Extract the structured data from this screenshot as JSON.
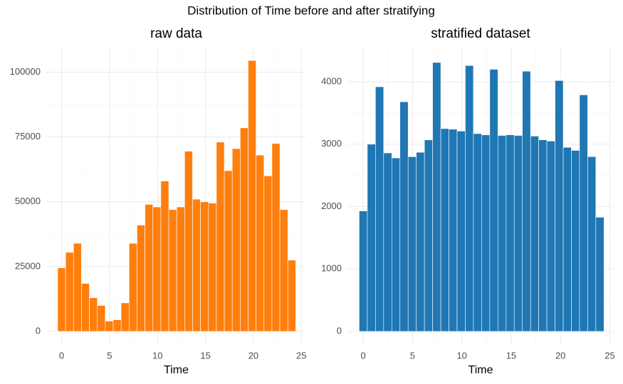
{
  "title": "Distribution of Time before and after stratifying",
  "chart_data": [
    {
      "type": "histogram",
      "title": "raw data",
      "x_label": "Time",
      "color": "#ff7f0e",
      "bins": [
        -0.414,
        0.414,
        1.241,
        2.069,
        2.897,
        3.724,
        4.552,
        5.379,
        6.207,
        7.034,
        7.862,
        8.69,
        9.517,
        10.345,
        11.172,
        12.0,
        12.828,
        13.655,
        14.483,
        15.31,
        16.138,
        16.966,
        17.793,
        18.621,
        19.448,
        20.276,
        21.103,
        21.931,
        22.759,
        23.586,
        24.414
      ],
      "values": [
        24500,
        30500,
        34000,
        18500,
        13000,
        10000,
        4000,
        4500,
        11000,
        34000,
        41000,
        49000,
        48000,
        58000,
        47000,
        48000,
        69500,
        51000,
        50000,
        49500,
        73000,
        62000,
        70500,
        78500,
        104500,
        68000,
        60000,
        72500,
        47000,
        27500
      ],
      "xlim": [
        -1.6,
        25.5
      ],
      "ylim": [
        -5200,
        110000
      ],
      "xticks": [
        0,
        5,
        10,
        15,
        20,
        25
      ],
      "yticks": [
        0,
        25000,
        50000,
        75000,
        100000
      ],
      "grid": true
    },
    {
      "type": "histogram",
      "title": "stratified dataset",
      "x_label": "Time",
      "color": "#1f77b4",
      "bins": [
        -0.414,
        0.414,
        1.241,
        2.069,
        2.897,
        3.724,
        4.552,
        5.379,
        6.207,
        7.034,
        7.862,
        8.69,
        9.517,
        10.345,
        11.172,
        12.0,
        12.828,
        13.655,
        14.483,
        15.31,
        16.138,
        16.966,
        17.793,
        18.621,
        19.448,
        20.276,
        21.103,
        21.931,
        22.759,
        23.586,
        24.414
      ],
      "values": [
        1930,
        3000,
        3920,
        2860,
        2780,
        3680,
        2800,
        2870,
        3070,
        4310,
        3250,
        3240,
        3210,
        4260,
        3170,
        3150,
        4200,
        3140,
        3150,
        3140,
        4170,
        3130,
        3070,
        3050,
        4020,
        2950,
        2900,
        3790,
        2800,
        1830
      ],
      "xlim": [
        -1.6,
        25.4
      ],
      "ylim": [
        -216,
        4570
      ],
      "xticks": [
        0,
        5,
        10,
        15,
        20,
        25
      ],
      "yticks": [
        0,
        1000,
        2000,
        3000,
        4000
      ],
      "grid": true
    }
  ]
}
